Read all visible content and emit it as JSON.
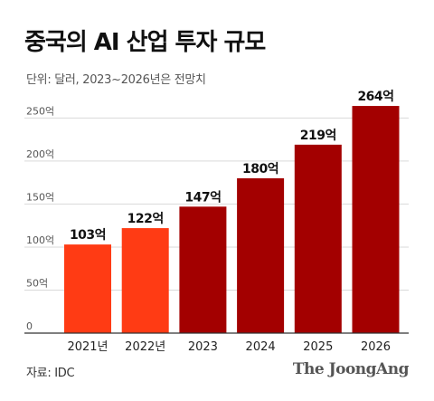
{
  "header": {
    "title": "중국의 AI 산업 투자 규모",
    "subtitle": "단위: 달러, 2023~2026년은 전망치"
  },
  "footer": {
    "source": "자료: IDC",
    "brand": "The JoongAng"
  },
  "colors": {
    "actual": "#ff3b14",
    "forecast": "#a30000",
    "grid": "#d9d9d9",
    "axis": "#333333"
  },
  "chart_data": {
    "type": "bar",
    "categories": [
      "2021년",
      "2022년",
      "2023",
      "2024",
      "2025",
      "2026"
    ],
    "values": [
      103,
      122,
      147,
      180,
      219,
      264
    ],
    "value_labels": [
      "103억",
      "122억",
      "147억",
      "180억",
      "219억",
      "264억"
    ],
    "y_ticks": [
      0,
      50,
      100,
      150,
      200,
      250
    ],
    "y_tick_labels": [
      "0",
      "50억",
      "100억",
      "150억",
      "200억",
      "250억"
    ],
    "ylim": [
      0,
      264
    ],
    "forecast_from_index": 2,
    "grid": true
  }
}
